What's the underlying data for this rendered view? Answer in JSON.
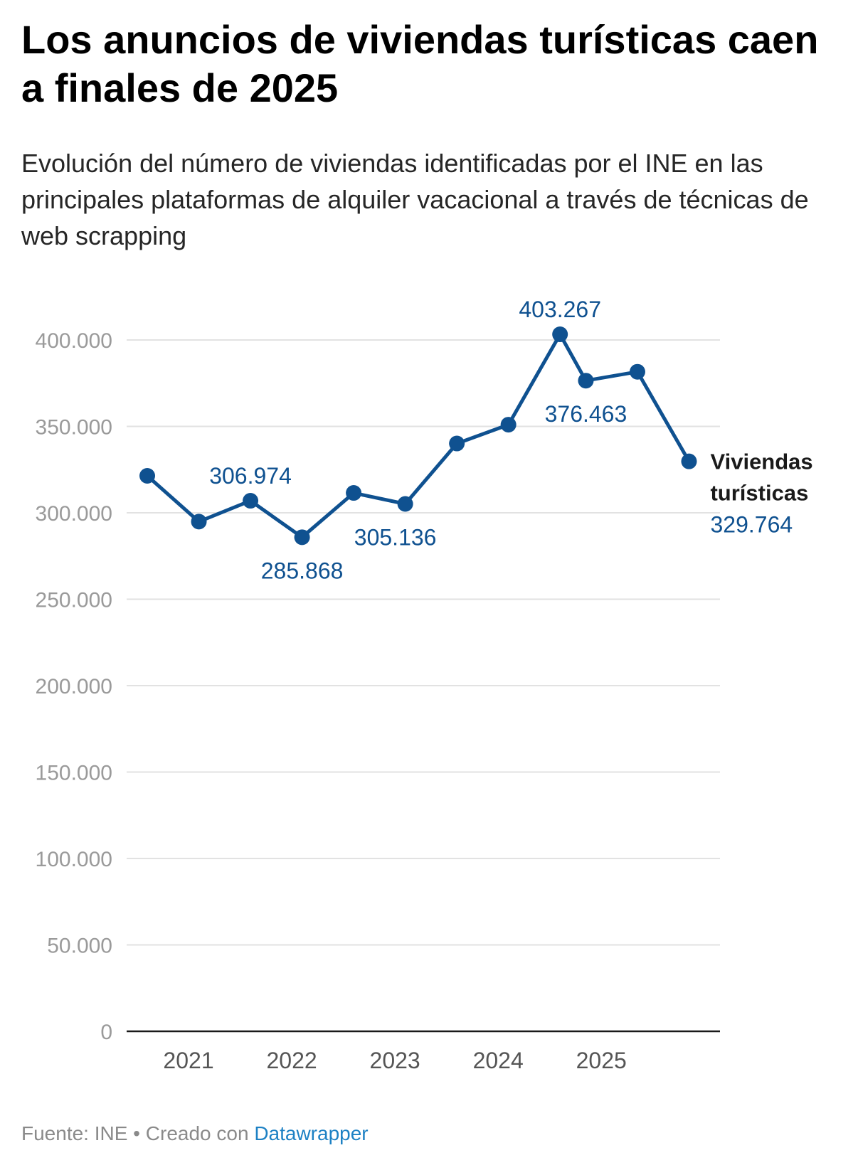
{
  "title": "Los anuncios de viviendas turísticas caen a finales de 2025",
  "subtitle": "Evolución del número de viviendas identificadas por el INE en las principales plataformas de alquiler vacacional a través de técnicas de web scrapping",
  "footer": {
    "source": "Fuente: INE • Creado con ",
    "credit": "Datawrapper"
  },
  "colors": {
    "line": "#0f5190",
    "grid": "#e2e2e2",
    "axis": "#1a1a1a"
  },
  "chart_data": {
    "type": "line",
    "ylim": [
      0,
      400000
    ],
    "xlim": [
      2020.4,
      2026.15
    ],
    "grid": true,
    "yticks": [
      {
        "value": 0,
        "label": "0"
      },
      {
        "value": 50000,
        "label": "50.000"
      },
      {
        "value": 100000,
        "label": "100.000"
      },
      {
        "value": 150000,
        "label": "150.000"
      },
      {
        "value": 200000,
        "label": "200.000"
      },
      {
        "value": 250000,
        "label": "250.000"
      },
      {
        "value": 300000,
        "label": "300.000"
      },
      {
        "value": 350000,
        "label": "350.000"
      },
      {
        "value": 400000,
        "label": "400.000"
      }
    ],
    "xticks": [
      {
        "value": 2021,
        "label": "2021"
      },
      {
        "value": 2022,
        "label": "2022"
      },
      {
        "value": 2023,
        "label": "2023"
      },
      {
        "value": 2024,
        "label": "2024"
      },
      {
        "value": 2025,
        "label": "2025"
      }
    ],
    "series": [
      {
        "name": "Viviendas turísticas",
        "name_lines": [
          "Viviendas",
          "turísticas"
        ],
        "points": [
          {
            "x": 2020.6,
            "y": 321400
          },
          {
            "x": 2021.1,
            "y": 294900
          },
          {
            "x": 2021.6,
            "y": 306974,
            "label": "306.974",
            "pos": "above"
          },
          {
            "x": 2022.1,
            "y": 285868,
            "label": "285.868",
            "pos": "below"
          },
          {
            "x": 2022.6,
            "y": 311500
          },
          {
            "x": 2023.1,
            "y": 305136,
            "label": "305.136",
            "pos": "below-right"
          },
          {
            "x": 2023.6,
            "y": 340100
          },
          {
            "x": 2024.1,
            "y": 351000
          },
          {
            "x": 2024.6,
            "y": 403267,
            "label": "403.267",
            "pos": "above"
          },
          {
            "x": 2024.85,
            "y": 376463,
            "label": "376.463",
            "pos": "below"
          },
          {
            "x": 2025.35,
            "y": 381600
          },
          {
            "x": 2025.85,
            "y": 329764,
            "label": "329.764",
            "pos": "end"
          }
        ]
      }
    ]
  }
}
